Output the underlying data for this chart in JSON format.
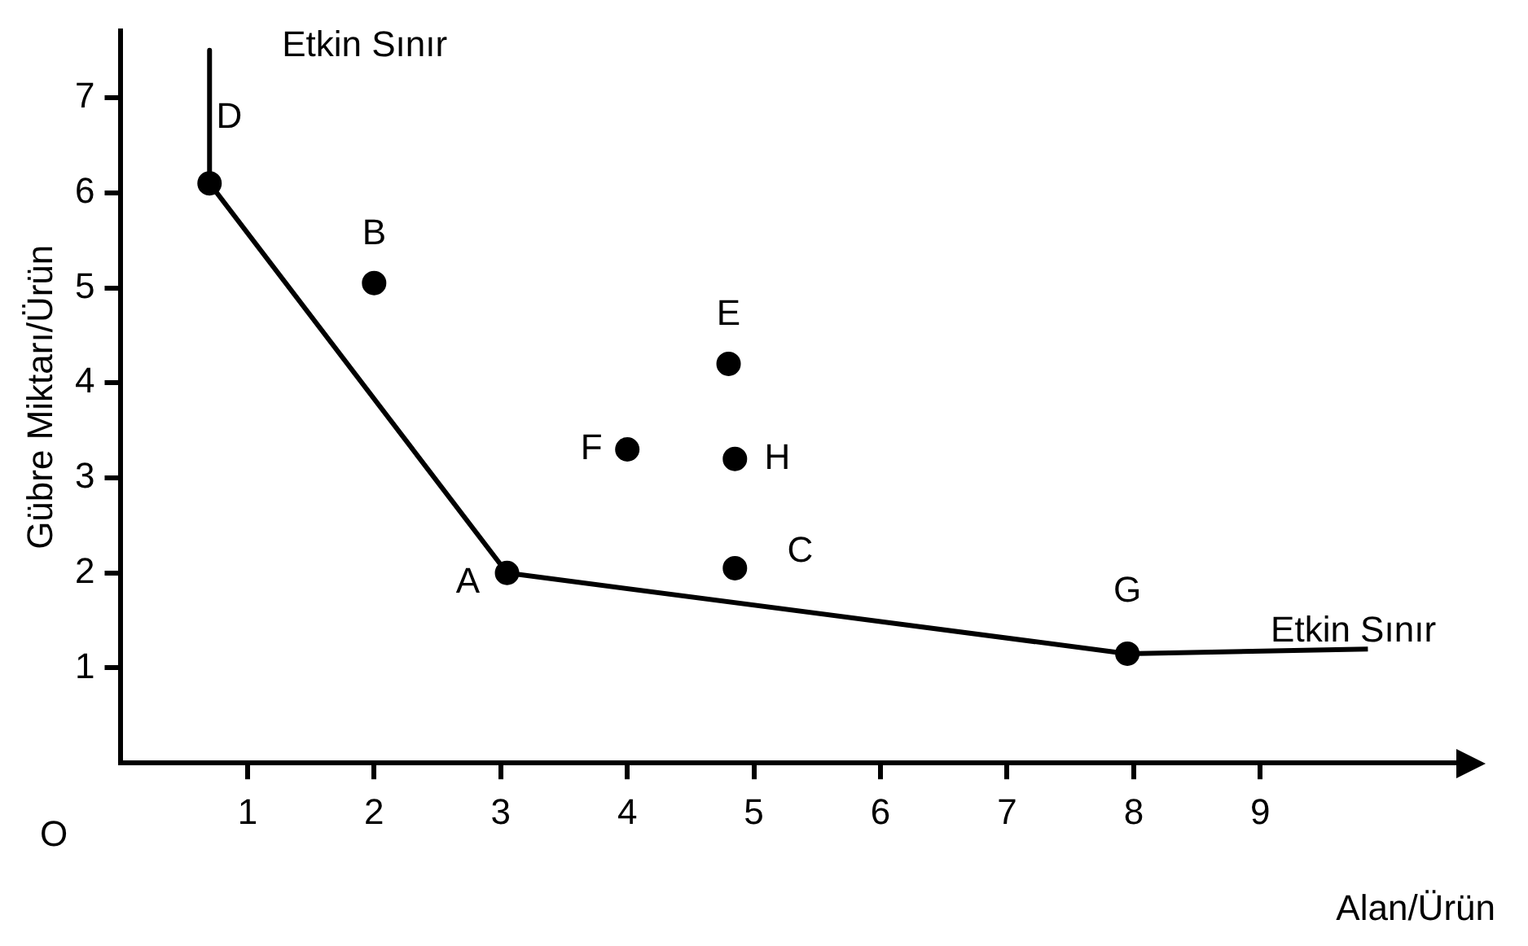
{
  "chart_data": {
    "type": "scatter",
    "xlabel": "Alan/Ürün",
    "ylabel": "Gübre Miktarı/Ürün",
    "xlim": [
      0,
      10.6
    ],
    "ylim": [
      0,
      7.7
    ],
    "xticks": [
      1,
      2,
      3,
      4,
      5,
      6,
      7,
      8,
      9
    ],
    "yticks": [
      1,
      2,
      3,
      4,
      5,
      6,
      7
    ],
    "grid": false,
    "legend": false,
    "series": [
      {
        "type": "line",
        "color": "#000000",
        "marker": "none",
        "line_style": "solid",
        "x": [
          0.7,
          0.7,
          3.05,
          7.95,
          9.85
        ],
        "values": [
          7.5,
          6.1,
          2.0,
          1.15,
          1.2
        ]
      },
      {
        "type": "scatter",
        "color": "#000000",
        "marker": "circle",
        "x": [
          0.7,
          2.0,
          4.8,
          4.0,
          4.85,
          3.05,
          4.85,
          7.95
        ],
        "values": [
          6.1,
          5.05,
          4.2,
          3.3,
          3.2,
          2.0,
          2.05,
          1.15
        ],
        "value_labels": [
          "D",
          "B",
          "E",
          "F",
          "H",
          "A",
          "C",
          "G"
        ]
      }
    ],
    "annotations": [
      "Etkin Sınır",
      "Etkin Sınır",
      "O"
    ]
  }
}
